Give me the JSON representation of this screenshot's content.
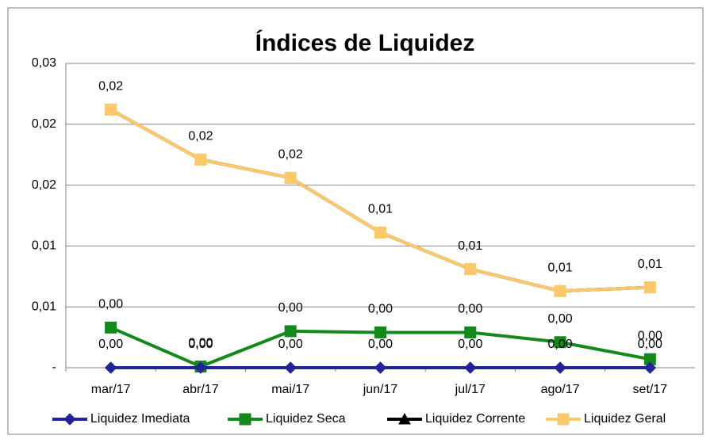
{
  "chart_data": {
    "type": "line",
    "title": "Índices de Liquidez",
    "categories": [
      "mar/17",
      "abr/17",
      "mai/17",
      "jun/17",
      "jul/17",
      "ago/17",
      "set/17"
    ],
    "series": [
      {
        "name": "Liquidez Imediata",
        "color": "#23239a",
        "marker": "diamond",
        "values": [
          0,
          0,
          0,
          0,
          0,
          0,
          0
        ],
        "value_labels": [
          "0,00",
          "0,00",
          "0,00",
          "0,00",
          "0,00",
          "0,00",
          "0,00"
        ]
      },
      {
        "name": "Liquidez Seca",
        "color": "#13891b",
        "marker": "square",
        "values": [
          0.0033,
          0.0001,
          0.003,
          0.0029,
          0.0029,
          0.0021,
          0.0007
        ],
        "value_labels": [
          "0,00",
          "0,00",
          "0,00",
          "0,00",
          "0,00",
          "0,00",
          "0,00"
        ]
      },
      {
        "name": "Liquidez Corrente",
        "color": "#000000",
        "marker": "triangle",
        "values": [
          0.0212,
          0.0171,
          0.0156,
          0.0111,
          0.0081,
          0.0063,
          0.0066
        ]
      },
      {
        "name": "Liquidez Geral",
        "color": "#fcc86a",
        "marker": "square",
        "values": [
          0.0212,
          0.0171,
          0.0156,
          0.0111,
          0.0081,
          0.0063,
          0.0066
        ],
        "value_labels": [
          "0,02",
          "0,02",
          "0,02",
          "0,01",
          "0,01",
          "0,01",
          "0,01"
        ]
      }
    ],
    "ylim": [
      0,
      0.025
    ],
    "yticks": [
      {
        "value": 0,
        "label": "-"
      },
      {
        "value": 0.005,
        "label": "0,01"
      },
      {
        "value": 0.01,
        "label": "0,01"
      },
      {
        "value": 0.015,
        "label": "0,02"
      },
      {
        "value": 0.02,
        "label": "0,02"
      },
      {
        "value": 0.025,
        "label": "0,03"
      }
    ],
    "grid": true,
    "legend": "bottom"
  }
}
